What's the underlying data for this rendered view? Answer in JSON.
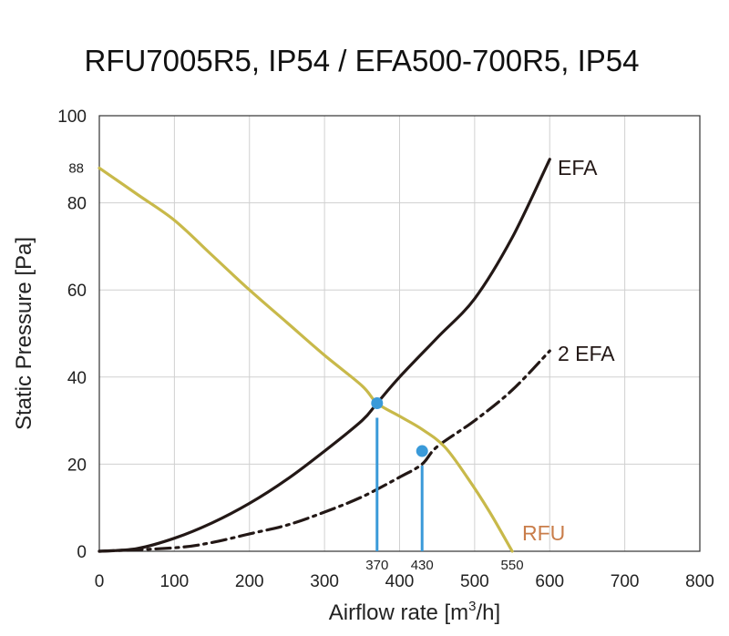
{
  "chart_data": {
    "type": "line",
    "title": "RFU7005R5, IP54 / EFA500-700R5, IP54",
    "xlabel_prefix": "Airflow rate [m",
    "xlabel_sup": "3",
    "xlabel_suffix": "/h]",
    "ylabel": "Static Pressure [Pa]",
    "xlim": [
      0,
      800
    ],
    "ylim": [
      0,
      100
    ],
    "x_ticks": [
      0,
      100,
      200,
      300,
      400,
      500,
      600,
      700,
      800
    ],
    "y_ticks": [
      0,
      20,
      40,
      60,
      80,
      100
    ],
    "grid": true,
    "extra_y_label": {
      "value": 88,
      "text": "88"
    },
    "series": [
      {
        "name": "EFA",
        "color": "#231816",
        "dash": "solid",
        "points": [
          [
            0,
            0
          ],
          [
            50,
            0.6
          ],
          [
            100,
            3
          ],
          [
            150,
            6.5
          ],
          [
            200,
            11
          ],
          [
            250,
            16.5
          ],
          [
            300,
            23
          ],
          [
            350,
            30
          ],
          [
            370,
            34
          ],
          [
            400,
            40
          ],
          [
            450,
            49
          ],
          [
            500,
            58
          ],
          [
            550,
            72
          ],
          [
            600,
            90
          ]
        ]
      },
      {
        "name": "2 EFA",
        "color": "#231816",
        "dash": "dashdot",
        "points": [
          [
            0,
            0
          ],
          [
            100,
            0.8
          ],
          [
            150,
            2
          ],
          [
            200,
            4
          ],
          [
            250,
            6
          ],
          [
            300,
            9
          ],
          [
            350,
            12.5
          ],
          [
            400,
            17
          ],
          [
            430,
            20
          ],
          [
            450,
            24
          ],
          [
            500,
            30
          ],
          [
            550,
            37
          ],
          [
            600,
            46
          ]
        ]
      },
      {
        "name": "RFU",
        "color": "#c8b94a",
        "label_color": "#c97d4a",
        "dash": "solid",
        "points": [
          [
            0,
            88
          ],
          [
            50,
            82
          ],
          [
            100,
            76
          ],
          [
            150,
            68
          ],
          [
            200,
            60
          ],
          [
            250,
            52.5
          ],
          [
            300,
            45
          ],
          [
            350,
            38
          ],
          [
            370,
            34
          ],
          [
            400,
            31
          ],
          [
            430,
            28
          ],
          [
            460,
            24
          ],
          [
            490,
            17
          ],
          [
            520,
            9
          ],
          [
            550,
            0
          ]
        ]
      }
    ],
    "operating_points": [
      {
        "x": 370,
        "y": 34,
        "label": "370"
      },
      {
        "x": 430,
        "y": 23,
        "label": "430"
      }
    ],
    "extra_x_label": {
      "value": 550,
      "text": "550"
    },
    "marker_color": "#3a9ad9"
  }
}
